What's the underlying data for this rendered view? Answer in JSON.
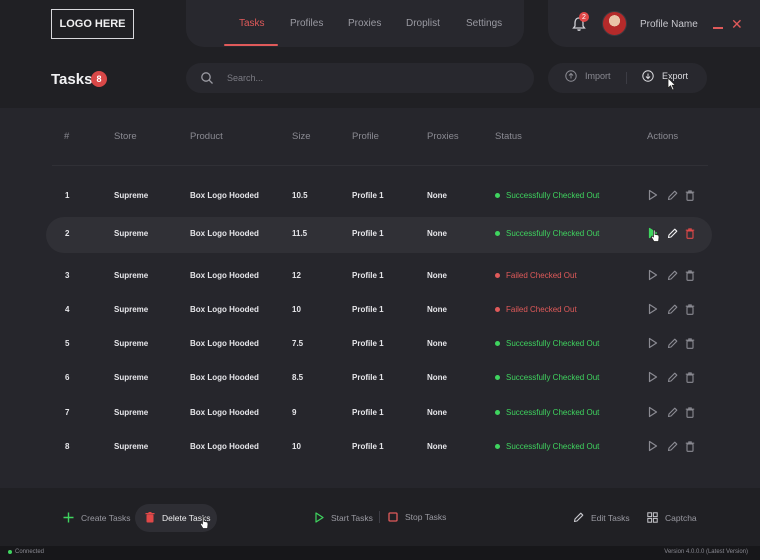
{
  "brand": {
    "logo_text": "LOGO HERE"
  },
  "nav": {
    "tabs": [
      {
        "label": "Tasks",
        "active": true
      },
      {
        "label": "Profiles"
      },
      {
        "label": "Proxies"
      },
      {
        "label": "Droplist"
      },
      {
        "label": "Settings"
      }
    ]
  },
  "user": {
    "notification_count": "2",
    "name": "Profile Name"
  },
  "page": {
    "title": "Tasks",
    "count": "8"
  },
  "search": {
    "placeholder": "Search..."
  },
  "toolbar": {
    "import_label": "Import",
    "export_label": "Export"
  },
  "table": {
    "headers": {
      "index": "#",
      "store": "Store",
      "product": "Product",
      "size": "Size",
      "profile": "Profile",
      "proxies": "Proxies",
      "status": "Status",
      "actions": "Actions"
    },
    "rows": [
      {
        "index": "1",
        "store": "Supreme",
        "product": "Box Logo Hooded",
        "size": "10.5",
        "profile": "Profile 1",
        "proxies": "None",
        "status": "Successfully Checked Out",
        "status_type": "success"
      },
      {
        "index": "2",
        "store": "Supreme",
        "product": "Box Logo Hooded",
        "size": "11.5",
        "profile": "Profile 1",
        "proxies": "None",
        "status": "Successfully Checked Out",
        "status_type": "success"
      },
      {
        "index": "3",
        "store": "Supreme",
        "product": "Box Logo Hooded",
        "size": "12",
        "profile": "Profile 1",
        "proxies": "None",
        "status": "Failed Checked Out",
        "status_type": "failed"
      },
      {
        "index": "4",
        "store": "Supreme",
        "product": "Box Logo Hooded",
        "size": "10",
        "profile": "Profile 1",
        "proxies": "None",
        "status": "Failed Checked Out",
        "status_type": "failed"
      },
      {
        "index": "5",
        "store": "Supreme",
        "product": "Box Logo Hooded",
        "size": "7.5",
        "profile": "Profile 1",
        "proxies": "None",
        "status": "Successfully Checked Out",
        "status_type": "success"
      },
      {
        "index": "6",
        "store": "Supreme",
        "product": "Box Logo Hooded",
        "size": "8.5",
        "profile": "Profile 1",
        "proxies": "None",
        "status": "Successfully Checked Out",
        "status_type": "success"
      },
      {
        "index": "7",
        "store": "Supreme",
        "product": "Box Logo Hooded",
        "size": "9",
        "profile": "Profile 1",
        "proxies": "None",
        "status": "Successfully Checked Out",
        "status_type": "success"
      },
      {
        "index": "8",
        "store": "Supreme",
        "product": "Box Logo Hooded",
        "size": "10",
        "profile": "Profile 1",
        "proxies": "None",
        "status": "Successfully Checked Out",
        "status_type": "success"
      }
    ]
  },
  "footer": {
    "create_label": "Create Tasks",
    "delete_label": "Delete Tasks",
    "start_label": "Start Tasks",
    "stop_label": "Stop Tasks",
    "edit_label": "Edit Tasks",
    "captcha_label": "Captcha"
  },
  "statusbar": {
    "connection": "Connected",
    "version": "Version 4.0.0.0 (Latest Version)"
  },
  "colors": {
    "accent": "#e05a5a",
    "success": "#3fd45f",
    "failed": "#e05a5a",
    "background": "#26262c",
    "panel": "#202024"
  },
  "icons": [
    "bell-icon",
    "search-icon",
    "import-icon",
    "export-icon",
    "play-icon",
    "edit-icon",
    "trash-icon",
    "plus-icon",
    "stop-icon",
    "captcha-icon"
  ]
}
